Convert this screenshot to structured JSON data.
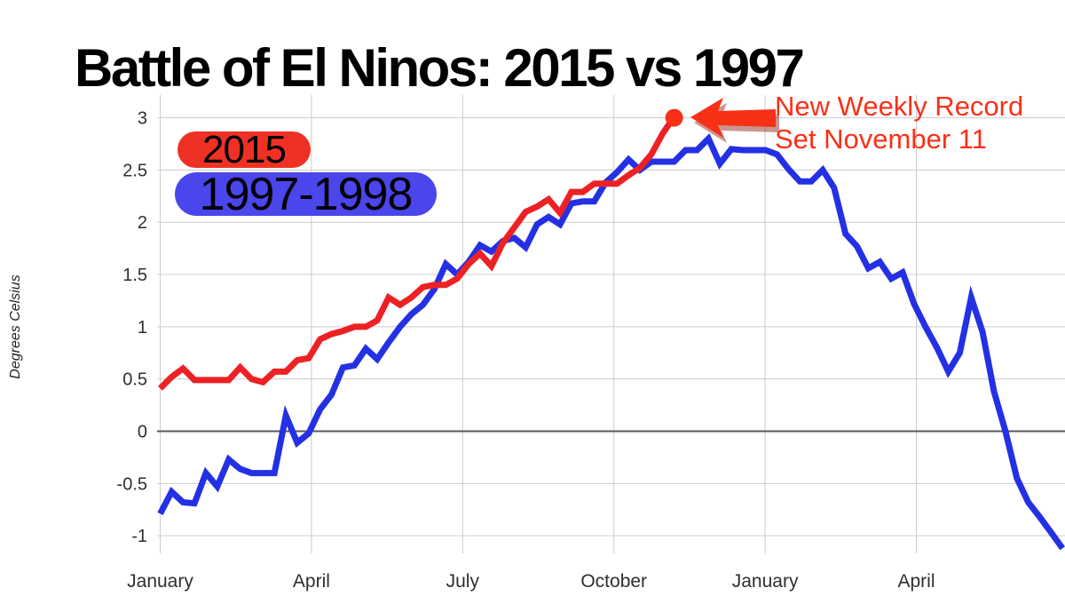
{
  "title": "Battle of El Ninos: 2015 vs 1997",
  "y_axis": {
    "label": "Degrees Celsius",
    "ticks": [
      "3",
      "2.5",
      "2",
      "1.5",
      "1",
      "0.5",
      "0",
      "-0.5",
      "-1"
    ],
    "tick_values": [
      3,
      2.5,
      2,
      1.5,
      1,
      0.5,
      0,
      -0.5,
      -1
    ]
  },
  "x_axis": {
    "tick_labels": [
      "January",
      "April",
      "July",
      "October",
      "January",
      "April"
    ]
  },
  "legend": [
    {
      "label": "2015",
      "color": "#ee3124",
      "text_color": "#000000"
    },
    {
      "label": "1997-1998",
      "color": "#4b45ec",
      "text_color": "#000000"
    }
  ],
  "annotation": {
    "line1": "New Weekly Record",
    "line2": "Set November 11"
  },
  "colors": {
    "series_2015": "#ed2124",
    "series_1997": "#2430e4",
    "grid": "#cccccc",
    "zero_line": "#595959",
    "tick_text": "#2f2f2f",
    "axis_label": "#222222",
    "annotation": "#f93018",
    "annotation_shadow": "#8a1408",
    "title": "#000000",
    "background": "#ffffff"
  },
  "chart_data": {
    "type": "line",
    "title": "Battle of El Ninos: 2015 vs 1997",
    "ylabel": "Degrees Celsius",
    "x_unit": "weekly values; index 0 = first week of January; vertical gridlines mark months",
    "x_tick_labels": [
      "January",
      "April",
      "July",
      "October",
      "January",
      "April"
    ],
    "ylim": [
      -1.2,
      3.2
    ],
    "grid": true,
    "legend_position": "upper left",
    "series": [
      {
        "name": "2015",
        "color": "#ed2124",
        "values": [
          0.41,
          0.52,
          0.6,
          0.49,
          0.49,
          0.49,
          0.49,
          0.61,
          0.5,
          0.47,
          0.57,
          0.57,
          0.68,
          0.7,
          0.88,
          0.93,
          0.96,
          1.0,
          1.0,
          1.06,
          1.28,
          1.21,
          1.28,
          1.38,
          1.4,
          1.4,
          1.46,
          1.6,
          1.7,
          1.58,
          1.8,
          1.95,
          2.1,
          2.15,
          2.22,
          2.09,
          2.29,
          2.29,
          2.37,
          2.37,
          2.37,
          2.45,
          2.52,
          2.65,
          2.85,
          3.01
        ]
      },
      {
        "name": "1997-1998",
        "color": "#2430e4",
        "values": [
          -0.79,
          -0.58,
          -0.68,
          -0.69,
          -0.4,
          -0.53,
          -0.27,
          -0.36,
          -0.4,
          -0.4,
          -0.4,
          0.15,
          -0.11,
          -0.02,
          0.21,
          0.35,
          0.61,
          0.63,
          0.79,
          0.69,
          0.85,
          1.0,
          1.12,
          1.21,
          1.36,
          1.6,
          1.5,
          1.62,
          1.78,
          1.72,
          1.82,
          1.85,
          1.76,
          1.98,
          2.05,
          1.98,
          2.18,
          2.2,
          2.2,
          2.38,
          2.48,
          2.6,
          2.5,
          2.58,
          2.58,
          2.58,
          2.69,
          2.69,
          2.8,
          2.56,
          2.7,
          2.69,
          2.69,
          2.69,
          2.65,
          2.51,
          2.39,
          2.39,
          2.5,
          2.33,
          1.89,
          1.77,
          1.56,
          1.62,
          1.46,
          1.52,
          1.22,
          1.0,
          0.8,
          0.57,
          0.75,
          1.28,
          0.95,
          0.38,
          0.0,
          -0.45,
          -0.68,
          -0.82,
          -0.97,
          -1.12
        ]
      }
    ],
    "record_point": {
      "series": "2015",
      "week_index": 45,
      "value": 3.0,
      "annotation": "New Weekly Record Set November 11"
    }
  }
}
